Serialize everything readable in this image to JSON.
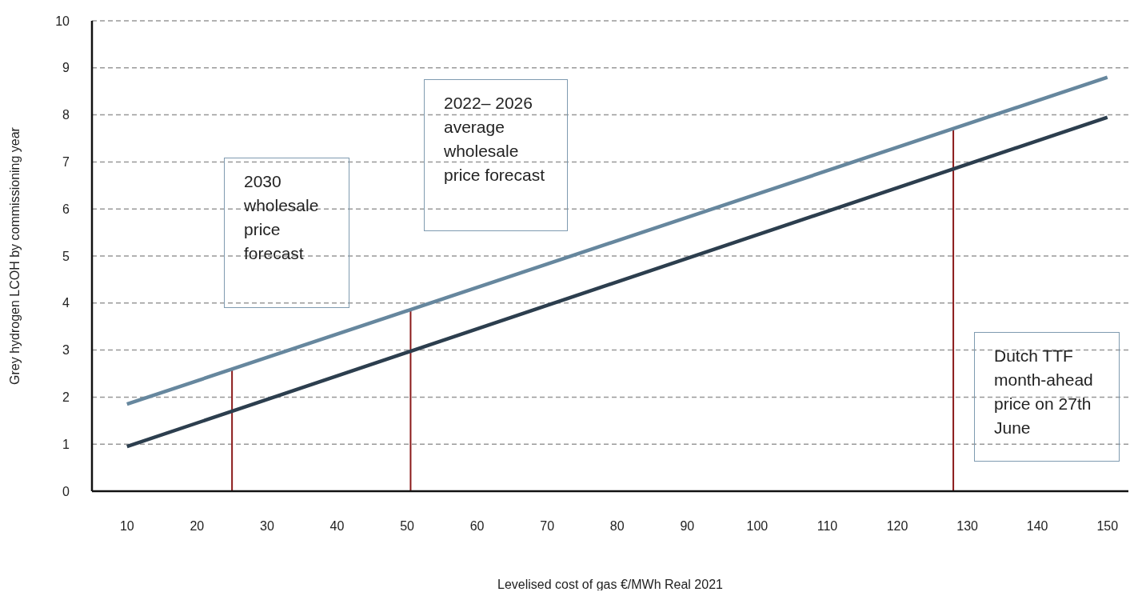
{
  "chart_data": {
    "type": "line",
    "xlabel": "Levelised cost of gas €/MWh Real 2021",
    "ylabel": "Grey hydrogen LCOH by commissioning year",
    "x": [
      10,
      150
    ],
    "series": [
      {
        "color": "#66879e",
        "values": [
          1.85,
          8.8
        ]
      },
      {
        "color": "#2c3e4e",
        "values": [
          0.95,
          7.95
        ]
      }
    ],
    "xlim": [
      5,
      153
    ],
    "xticks": [
      10,
      20,
      30,
      40,
      50,
      60,
      70,
      80,
      90,
      100,
      110,
      120,
      130,
      140,
      150
    ],
    "ylim": [
      0,
      10
    ],
    "yticks": [
      0,
      1,
      2,
      3,
      4,
      5,
      6,
      7,
      8,
      9,
      10
    ],
    "grid": "y",
    "ref_lines": [
      {
        "axis": "x",
        "value": 25,
        "color": "#8b1a1a"
      },
      {
        "axis": "x",
        "value": 50.5,
        "color": "#8b1a1a"
      },
      {
        "axis": "x",
        "value": 128,
        "color": "#8b1a1a"
      }
    ],
    "annotations": [
      "2030 wholesale price forecast",
      "2022– 2026 average wholesale price forecast",
      "Dutch TTF month-ahead price on 27th June"
    ]
  }
}
